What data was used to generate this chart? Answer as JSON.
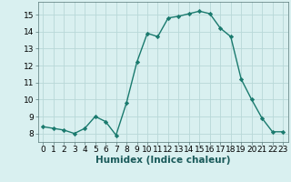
{
  "x": [
    0,
    1,
    2,
    3,
    4,
    5,
    6,
    7,
    8,
    9,
    10,
    11,
    12,
    13,
    14,
    15,
    16,
    17,
    18,
    19,
    20,
    21,
    22,
    23
  ],
  "y": [
    8.4,
    8.3,
    8.2,
    8.0,
    8.3,
    9.0,
    8.7,
    7.9,
    9.8,
    12.2,
    13.9,
    13.7,
    14.8,
    14.9,
    15.05,
    15.2,
    15.05,
    14.2,
    13.7,
    11.2,
    10.0,
    8.9,
    8.1,
    8.1
  ],
  "line_color": "#1a7a6e",
  "marker": "D",
  "marker_size": 2.2,
  "bg_color": "#d9f0f0",
  "grid_color": "#b8d8d8",
  "xlabel": "Humidex (Indice chaleur)",
  "xlim": [
    -0.5,
    23.5
  ],
  "ylim": [
    7.5,
    15.75
  ],
  "yticks": [
    8,
    9,
    10,
    11,
    12,
    13,
    14,
    15
  ],
  "xticks": [
    0,
    1,
    2,
    3,
    4,
    5,
    6,
    7,
    8,
    9,
    10,
    11,
    12,
    13,
    14,
    15,
    16,
    17,
    18,
    19,
    20,
    21,
    22,
    23
  ],
  "tick_fontsize": 6.5,
  "xlabel_fontsize": 7.5,
  "linewidth": 1.0
}
